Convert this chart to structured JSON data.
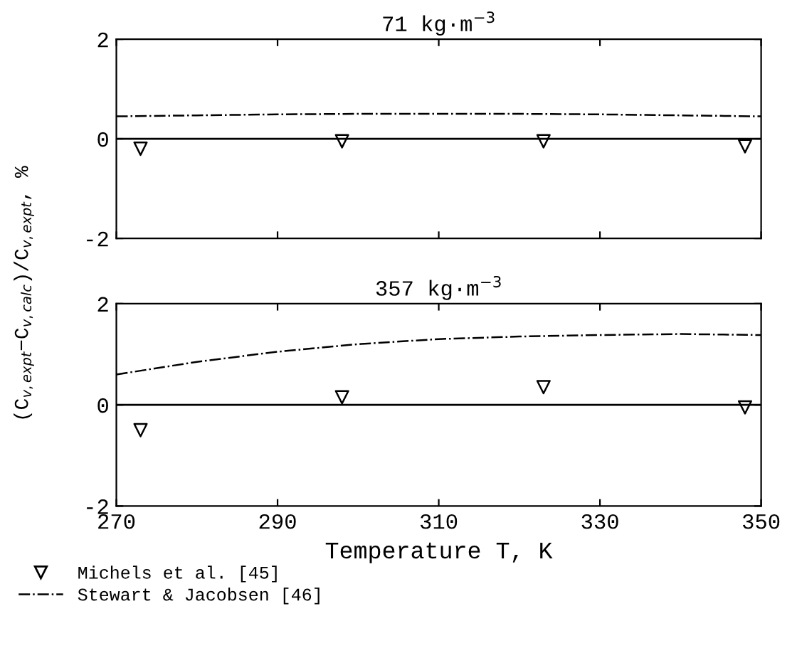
{
  "chart_data": [
    {
      "type": "scatter",
      "title": "71 kg·m$^{−3}$",
      "ylabel": "(C$_{v,expt}$−C$_{v,calc}$)/C$_{v,expt}$, %",
      "xlim": [
        270,
        350
      ],
      "xticks": [
        270,
        290,
        310,
        330,
        350
      ],
      "ylim": [
        -2,
        2
      ],
      "yticks": [
        -2,
        0,
        2
      ],
      "tick_labels": "y",
      "grid": false,
      "legend": false,
      "ref_lines": [
        {
          "axis": "y",
          "value": 0,
          "color": "#000000",
          "line_style": "solid"
        }
      ],
      "series": [
        {
          "marker": "triangle",
          "color": "#000000",
          "x": [
            273,
            298,
            323,
            348
          ],
          "values": [
            -0.2,
            -0.05,
            -0.05,
            -0.15
          ]
        },
        {
          "type": "line",
          "marker": "none",
          "line_style": "dashdot",
          "color": "#000000",
          "x": [
            270,
            280,
            290,
            300,
            310,
            320,
            330,
            340,
            350
          ],
          "values": [
            0.45,
            0.47,
            0.49,
            0.5,
            0.5,
            0.5,
            0.49,
            0.47,
            0.45
          ]
        }
      ]
    },
    {
      "type": "scatter",
      "title": "357 kg·m$^{−3}$",
      "xlabel": "Temperature T, K",
      "xlim": [
        270,
        350
      ],
      "xticks": [
        270,
        290,
        310,
        330,
        350
      ],
      "ylim": [
        -2,
        2
      ],
      "yticks": [
        -2,
        0,
        2
      ],
      "grid": false,
      "legend": "bottom",
      "ref_lines": [
        {
          "axis": "y",
          "value": 0,
          "color": "#000000",
          "line_style": "solid"
        }
      ],
      "series": [
        {
          "name": "Michels et al. [45]",
          "marker": "triangle",
          "color": "#000000",
          "x": [
            273,
            298,
            323,
            348
          ],
          "values": [
            -0.5,
            0.15,
            0.35,
            -0.05
          ]
        },
        {
          "type": "line",
          "name": "Stewart & Jacobsen [46]",
          "marker": "none",
          "line_style": "dashdot",
          "color": "#000000",
          "x": [
            270,
            280,
            290,
            300,
            310,
            320,
            330,
            340,
            350
          ],
          "values": [
            0.6,
            0.85,
            1.05,
            1.2,
            1.3,
            1.35,
            1.38,
            1.4,
            1.38
          ]
        }
      ]
    }
  ]
}
